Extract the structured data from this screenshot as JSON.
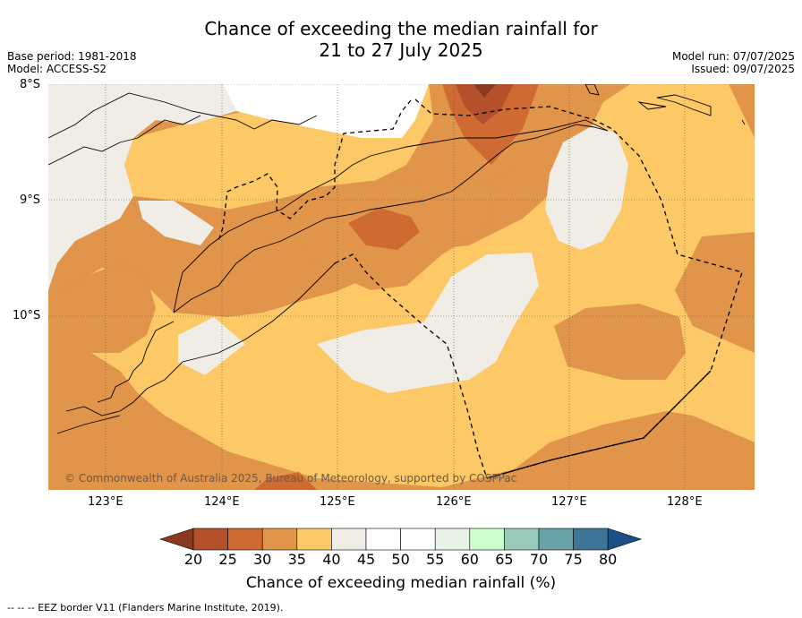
{
  "title_line1": "Chance of exceeding the median rainfall for",
  "title_line2": "21 to 27 July 2025",
  "base_period": "Base period: 1981-2018",
  "model": "Model: ACCESS-S2",
  "model_run": "Model run: 07/07/2025",
  "issued": "Issued: 09/07/2025",
  "lat_labels": [
    "8°S",
    "9°S",
    "10°S"
  ],
  "lon_labels": [
    "123°E",
    "124°E",
    "125°E",
    "126°E",
    "127°E",
    "128°E"
  ],
  "copyright": "© Commonwealth of Australia 2025, Bureau of Meteorology, supported by COSPPac",
  "colorbar": {
    "ticks": [
      "20",
      "25",
      "30",
      "35",
      "40",
      "45",
      "50",
      "55",
      "60",
      "65",
      "70",
      "75",
      "80"
    ],
    "colors": [
      "#8b3a1f",
      "#b5512a",
      "#cf6a32",
      "#e0954a",
      "#fdc966",
      "#f0ece6",
      "#ffffff",
      "#ffffff",
      "#e8f3e8",
      "#ccffcc",
      "#99ccb8",
      "#6aa3a7",
      "#3d7497",
      "#1b4f86"
    ],
    "title": "Chance of exceeding median rainfall (%)"
  },
  "footnote": "--  --  -- EEZ border V11 (Flanders Marine Institute, 2019)."
}
